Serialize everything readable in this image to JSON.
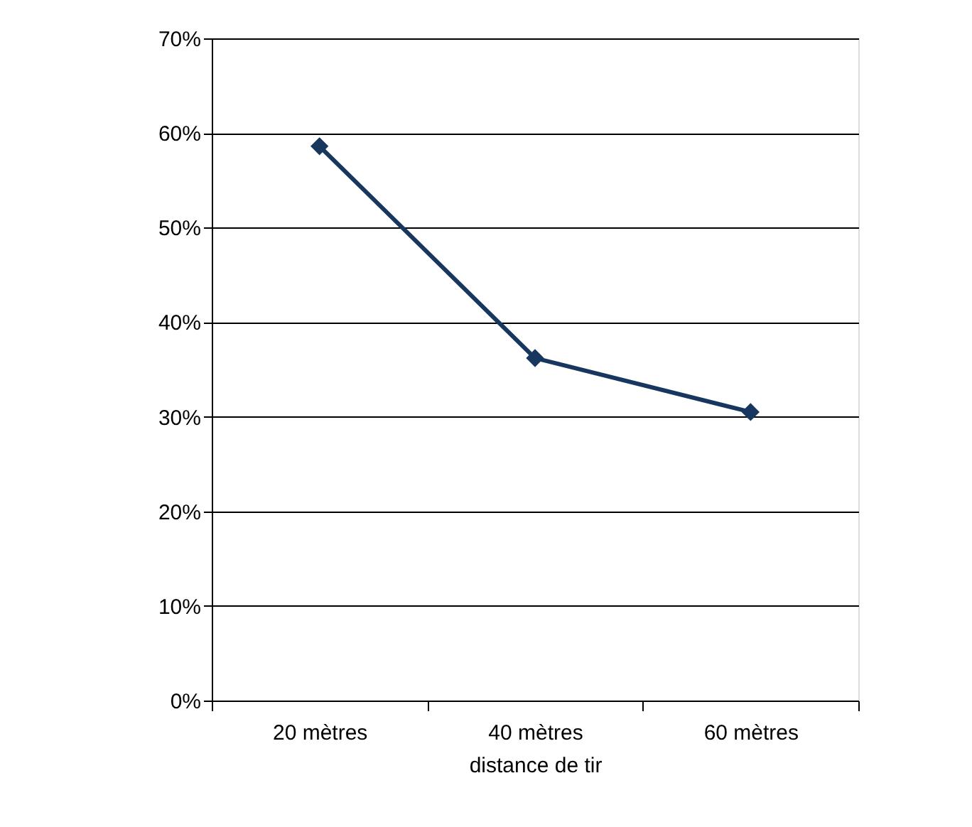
{
  "chart_data": {
    "type": "line",
    "xlabel": "distance de tir",
    "categories": [
      "20 mètres",
      "40 mètres",
      "60 mètres"
    ],
    "series": [
      {
        "color": "#17375e",
        "values": [
          58.6,
          36.2,
          30.5
        ]
      }
    ],
    "ylim": [
      0,
      70
    ],
    "yticks": [
      {
        "value": 0,
        "label": "0%"
      },
      {
        "value": 10,
        "label": "10%"
      },
      {
        "value": 20,
        "label": "20%"
      },
      {
        "value": 30,
        "label": "30%"
      },
      {
        "value": 40,
        "label": "40%"
      },
      {
        "value": 50,
        "label": "50%"
      },
      {
        "value": 60,
        "label": "60%"
      },
      {
        "value": 70,
        "label": "70%"
      }
    ],
    "grid": "y",
    "marker": "diamond",
    "line_style": "solid"
  }
}
